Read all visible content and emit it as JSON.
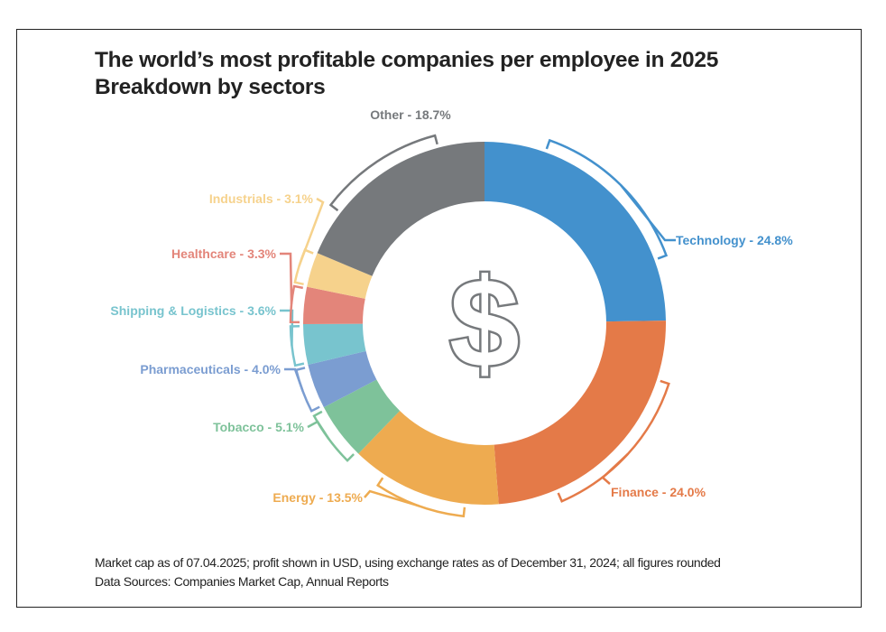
{
  "chart_data": {
    "type": "pie",
    "variant": "donut",
    "title": "The world’s most profitable companies per employee in 2025",
    "subtitle": "Breakdown by sectors",
    "unit": "%",
    "start": "12 o'clock, clockwise",
    "categories": [
      "Technology",
      "Finance",
      "Energy",
      "Tobacco",
      "Pharmaceuticals",
      "Shipping & Logistics",
      "Healthcare",
      "Industrials",
      "Other"
    ],
    "values": [
      24.8,
      24.0,
      13.5,
      5.1,
      4.0,
      3.6,
      3.3,
      3.1,
      18.7
    ],
    "labels": [
      "Technology - 24.8%",
      "Finance - 24.0%",
      "Energy - 13.5%",
      "Tobacco - 5.1%",
      "Pharmaceuticals - 4.0%",
      "Shipping & Logistics - 3.6%",
      "Healthcare - 3.3%",
      "Industrials - 3.1%",
      "Other - 18.7%"
    ],
    "colors": [
      "#4391cd",
      "#e47a48",
      "#eeab50",
      "#7ec29a",
      "#7b9dd1",
      "#78c4ce",
      "#e3857a",
      "#f6d28c",
      "#76797c"
    ],
    "center_icon": "dollar-sign-icon"
  },
  "footer": {
    "note": "Market cap as of 07.04.2025; profit shown in USD, using exchange rates as of December 31, 2024; all figures rounded",
    "sources": "Data Sources: Companies Market Cap, Annual Reports"
  },
  "colors": {
    "text": "#222222",
    "icon": "#76797c",
    "frame": "#222222"
  }
}
